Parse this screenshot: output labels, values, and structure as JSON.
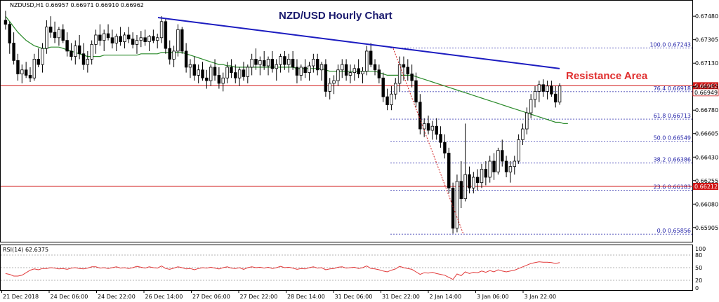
{
  "header": {
    "symbol_line": "NZDUSD,H1  0.66957 0.66971 0.66910 0.66962",
    "title": "NZD/USD Hourly Chart",
    "resistance_label": "Resistance Area",
    "rsi_label": "RSI(14) 62.6375"
  },
  "colors": {
    "bull_fill": "#ffffff",
    "bear_fill": "#000000",
    "candle_line": "#000000",
    "sma": "#2a8a2a",
    "trendline": "#1c1cc0",
    "horizontal": "#d01818",
    "fib": "#4a4ab8",
    "rsi": "#e23a3a",
    "annotation": "#e03030",
    "title": "#1a1a6e"
  },
  "chart_data": [
    {
      "type": "candlestick",
      "name": "price",
      "ylim": [
        0.6581,
        0.6758
      ],
      "y_ticks": [
        "0.67480",
        "0.67305",
        "0.67130",
        "0.66955",
        "0.66780",
        "0.66605",
        "0.66430",
        "0.66255",
        "0.66080",
        "0.65905"
      ],
      "x_ticks": [
        "21 Dec 2018",
        "24 Dec 06:00",
        "24 Dec 22:00",
        "26 Dec 14:00",
        "27 Dec 06:00",
        "27 Dec 22:00",
        "28 Dec 14:00",
        "31 Dec 06:00",
        "31 Dec 22:00",
        "2 Jan 14:00",
        "3 Jan 06:00",
        "3 Jan 22:00"
      ],
      "candles": [
        [
          0.6745,
          0.6752,
          0.6738,
          0.6742
        ],
        [
          0.6742,
          0.6744,
          0.672,
          0.6728
        ],
        [
          0.6728,
          0.6736,
          0.6712,
          0.6715
        ],
        [
          0.6715,
          0.672,
          0.67,
          0.6705
        ],
        [
          0.6705,
          0.6712,
          0.6698,
          0.6708
        ],
        [
          0.6708,
          0.6714,
          0.6702,
          0.6704
        ],
        [
          0.6704,
          0.671,
          0.6699,
          0.6702
        ],
        [
          0.6702,
          0.672,
          0.67,
          0.6716
        ],
        [
          0.6716,
          0.6724,
          0.671,
          0.6712
        ],
        [
          0.6712,
          0.6728,
          0.6706,
          0.6724
        ],
        [
          0.6724,
          0.6745,
          0.672,
          0.674
        ],
        [
          0.674,
          0.6748,
          0.6732,
          0.6736
        ],
        [
          0.6736,
          0.6744,
          0.6728,
          0.6732
        ],
        [
          0.6732,
          0.674,
          0.6726,
          0.6738
        ],
        [
          0.6738,
          0.6742,
          0.6728,
          0.673
        ],
        [
          0.673,
          0.6736,
          0.6718,
          0.6722
        ],
        [
          0.6722,
          0.6728,
          0.6715,
          0.6718
        ],
        [
          0.6718,
          0.673,
          0.6712,
          0.6726
        ],
        [
          0.6726,
          0.6734,
          0.6716,
          0.672
        ],
        [
          0.672,
          0.6728,
          0.6708,
          0.6712
        ],
        [
          0.6712,
          0.6722,
          0.6706,
          0.6716
        ],
        [
          0.6716,
          0.673,
          0.6712,
          0.6727
        ],
        [
          0.6727,
          0.6738,
          0.672,
          0.6734
        ],
        [
          0.6734,
          0.6742,
          0.6726,
          0.673
        ],
        [
          0.673,
          0.6738,
          0.6722,
          0.6735
        ],
        [
          0.6735,
          0.6742,
          0.673,
          0.6732
        ],
        [
          0.6732,
          0.6738,
          0.6724,
          0.6728
        ],
        [
          0.6728,
          0.6735,
          0.6722,
          0.6733
        ],
        [
          0.6733,
          0.674,
          0.6726,
          0.6729
        ],
        [
          0.6729,
          0.6736,
          0.6724,
          0.6734
        ],
        [
          0.6734,
          0.674,
          0.6728,
          0.6731
        ],
        [
          0.6731,
          0.6736,
          0.6724,
          0.6727
        ],
        [
          0.6727,
          0.6734,
          0.672,
          0.673
        ],
        [
          0.673,
          0.6737,
          0.6725,
          0.6732
        ],
        [
          0.6732,
          0.6738,
          0.6726,
          0.6729
        ],
        [
          0.6729,
          0.6734,
          0.6722,
          0.6733
        ],
        [
          0.6733,
          0.6738,
          0.6728,
          0.673
        ],
        [
          0.673,
          0.6735,
          0.6724,
          0.6732
        ],
        [
          0.6732,
          0.6748,
          0.6728,
          0.6744
        ],
        [
          0.6744,
          0.6746,
          0.672,
          0.6724
        ],
        [
          0.6724,
          0.673,
          0.6712,
          0.6716
        ],
        [
          0.6716,
          0.6726,
          0.671,
          0.6722
        ],
        [
          0.6722,
          0.6742,
          0.6718,
          0.6738
        ],
        [
          0.6738,
          0.674,
          0.672,
          0.6722
        ],
        [
          0.6722,
          0.6728,
          0.6706,
          0.671
        ],
        [
          0.671,
          0.6716,
          0.6702,
          0.6712
        ],
        [
          0.6712,
          0.6718,
          0.67,
          0.6704
        ],
        [
          0.6704,
          0.6712,
          0.6698,
          0.6708
        ],
        [
          0.6708,
          0.6714,
          0.67,
          0.6702
        ],
        [
          0.6702,
          0.6708,
          0.6694,
          0.67
        ],
        [
          0.67,
          0.6712,
          0.6696,
          0.671
        ],
        [
          0.671,
          0.6716,
          0.67,
          0.6704
        ],
        [
          0.6704,
          0.671,
          0.6694,
          0.6698
        ],
        [
          0.6698,
          0.6706,
          0.6692,
          0.6702
        ],
        [
          0.6702,
          0.6714,
          0.6698,
          0.671
        ],
        [
          0.671,
          0.6716,
          0.6702,
          0.6706
        ],
        [
          0.6706,
          0.6712,
          0.6698,
          0.6702
        ],
        [
          0.6702,
          0.671,
          0.6696,
          0.6708
        ],
        [
          0.6708,
          0.6714,
          0.67,
          0.6703
        ],
        [
          0.6703,
          0.6712,
          0.6698,
          0.671
        ],
        [
          0.671,
          0.672,
          0.6704,
          0.6716
        ],
        [
          0.6716,
          0.6724,
          0.6708,
          0.6712
        ],
        [
          0.6712,
          0.6718,
          0.6704,
          0.6715
        ],
        [
          0.6715,
          0.6722,
          0.6708,
          0.6711
        ],
        [
          0.6711,
          0.6718,
          0.6704,
          0.6716
        ],
        [
          0.6716,
          0.6722,
          0.6706,
          0.6709
        ],
        [
          0.6709,
          0.6716,
          0.67,
          0.6712
        ],
        [
          0.6712,
          0.672,
          0.6706,
          0.6718
        ],
        [
          0.6718,
          0.6722,
          0.6708,
          0.6712
        ],
        [
          0.6712,
          0.672,
          0.6706,
          0.6716
        ],
        [
          0.6716,
          0.6722,
          0.6708,
          0.671
        ],
        [
          0.671,
          0.6716,
          0.6698,
          0.6704
        ],
        [
          0.6704,
          0.6712,
          0.67,
          0.671
        ],
        [
          0.671,
          0.6716,
          0.6702,
          0.6706
        ],
        [
          0.6706,
          0.6714,
          0.67,
          0.6711
        ],
        [
          0.6711,
          0.672,
          0.6706,
          0.6716
        ],
        [
          0.6716,
          0.672,
          0.6704,
          0.6708
        ],
        [
          0.6708,
          0.6714,
          0.67,
          0.6712
        ],
        [
          0.6712,
          0.6716,
          0.6688,
          0.6692
        ],
        [
          0.6692,
          0.6702,
          0.6686,
          0.6698
        ],
        [
          0.6698,
          0.6704,
          0.669,
          0.67
        ],
        [
          0.67,
          0.6712,
          0.6696,
          0.6708
        ],
        [
          0.6708,
          0.6716,
          0.6702,
          0.6712
        ],
        [
          0.6712,
          0.6716,
          0.67,
          0.6704
        ],
        [
          0.6704,
          0.6712,
          0.6698,
          0.6706
        ],
        [
          0.6706,
          0.6712,
          0.67,
          0.6709
        ],
        [
          0.6709,
          0.6716,
          0.6702,
          0.6705
        ],
        [
          0.6705,
          0.671,
          0.6698,
          0.6707
        ],
        [
          0.6707,
          0.6726,
          0.6704,
          0.6722
        ],
        [
          0.6722,
          0.6728,
          0.671,
          0.6712
        ],
        [
          0.6712,
          0.6716,
          0.6704,
          0.6708
        ],
        [
          0.6708,
          0.6712,
          0.6698,
          0.6702
        ],
        [
          0.6702,
          0.6706,
          0.6684,
          0.6688
        ],
        [
          0.6688,
          0.6694,
          0.6678,
          0.6682
        ],
        [
          0.6682,
          0.6696,
          0.6678,
          0.669
        ],
        [
          0.669,
          0.6702,
          0.6686,
          0.6698
        ],
        [
          0.6698,
          0.6718,
          0.6692,
          0.6712
        ],
        [
          0.6712,
          0.6718,
          0.67,
          0.671
        ],
        [
          0.671,
          0.6716,
          0.67,
          0.6705
        ],
        [
          0.6705,
          0.6712,
          0.6695,
          0.67
        ],
        [
          0.67,
          0.6706,
          0.668,
          0.6684
        ],
        [
          0.6684,
          0.669,
          0.666,
          0.6664
        ],
        [
          0.6664,
          0.6672,
          0.6658,
          0.6668
        ],
        [
          0.6668,
          0.6674,
          0.666,
          0.6663
        ],
        [
          0.6663,
          0.667,
          0.6656,
          0.6666
        ],
        [
          0.6666,
          0.6672,
          0.6656,
          0.666
        ],
        [
          0.666,
          0.6666,
          0.665,
          0.6654
        ],
        [
          0.6654,
          0.666,
          0.6642,
          0.6646
        ],
        [
          0.6646,
          0.665,
          0.6616,
          0.662
        ],
        [
          0.662,
          0.6624,
          0.6586,
          0.659
        ],
        [
          0.659,
          0.663,
          0.6587,
          0.6625
        ],
        [
          0.6625,
          0.664,
          0.6605,
          0.6612
        ],
        [
          0.6612,
          0.6668,
          0.661,
          0.663
        ],
        [
          0.663,
          0.6636,
          0.6616,
          0.662
        ],
        [
          0.662,
          0.6632,
          0.6616,
          0.6628
        ],
        [
          0.6628,
          0.6634,
          0.6618,
          0.6624
        ],
        [
          0.6624,
          0.6638,
          0.662,
          0.6634
        ],
        [
          0.6634,
          0.664,
          0.6622,
          0.6628
        ],
        [
          0.6628,
          0.6644,
          0.6624,
          0.664
        ],
        [
          0.664,
          0.6646,
          0.6626,
          0.6632
        ],
        [
          0.6632,
          0.665,
          0.663,
          0.6648
        ],
        [
          0.6648,
          0.6656,
          0.6636,
          0.664
        ],
        [
          0.664,
          0.6644,
          0.6628,
          0.6632
        ],
        [
          0.6632,
          0.664,
          0.6624,
          0.6636
        ],
        [
          0.6636,
          0.6644,
          0.663,
          0.664
        ],
        [
          0.664,
          0.666,
          0.6638,
          0.6656
        ],
        [
          0.6656,
          0.6668,
          0.6652,
          0.6664
        ],
        [
          0.6664,
          0.668,
          0.666,
          0.6676
        ],
        [
          0.6676,
          0.669,
          0.6672,
          0.6686
        ],
        [
          0.6686,
          0.6696,
          0.668,
          0.6692
        ],
        [
          0.6692,
          0.67,
          0.6684,
          0.6697
        ],
        [
          0.6697,
          0.6701,
          0.6688,
          0.6692
        ],
        [
          0.6692,
          0.67,
          0.6686,
          0.6696
        ],
        [
          0.6696,
          0.67,
          0.6688,
          0.669
        ],
        [
          0.669,
          0.6696,
          0.668,
          0.6684
        ],
        [
          0.6684,
          0.6698,
          0.6682,
          0.6696
        ]
      ],
      "sma": [
        0.6748,
        0.6744,
        0.674,
        0.6736,
        0.6733,
        0.673,
        0.6728,
        0.6726,
        0.6725,
        0.6724,
        0.6724,
        0.6725,
        0.6725,
        0.6725,
        0.6724,
        0.6723,
        0.6722,
        0.6721,
        0.672,
        0.6719,
        0.6718,
        0.6718,
        0.6718,
        0.6718,
        0.6719,
        0.6719,
        0.6719,
        0.6719,
        0.6719,
        0.6719,
        0.6719,
        0.6719,
        0.6719,
        0.672,
        0.672,
        0.672,
        0.672,
        0.672,
        0.6721,
        0.6721,
        0.6721,
        0.6721,
        0.6721,
        0.6721,
        0.672,
        0.6719,
        0.6718,
        0.6717,
        0.6716,
        0.6715,
        0.6714,
        0.6713,
        0.6712,
        0.6712,
        0.6711,
        0.6711,
        0.671,
        0.671,
        0.671,
        0.671,
        0.671,
        0.671,
        0.671,
        0.671,
        0.671,
        0.671,
        0.671,
        0.671,
        0.671,
        0.671,
        0.671,
        0.6709,
        0.6709,
        0.6709,
        0.6709,
        0.6709,
        0.6709,
        0.6709,
        0.6708,
        0.6707,
        0.6707,
        0.6707,
        0.6707,
        0.6707,
        0.6707,
        0.6707,
        0.6707,
        0.6707,
        0.6707,
        0.6707,
        0.6707,
        0.6706,
        0.6705,
        0.6704,
        0.6704,
        0.6704,
        0.6704,
        0.6704,
        0.6704,
        0.6704,
        0.6703,
        0.6702,
        0.6701,
        0.67,
        0.6699,
        0.6698,
        0.6697,
        0.6696,
        0.6695,
        0.6694,
        0.6693,
        0.6692,
        0.6691,
        0.669,
        0.6689,
        0.6688,
        0.6687,
        0.6686,
        0.6685,
        0.6684,
        0.6683,
        0.6682,
        0.6681,
        0.668,
        0.6679,
        0.6678,
        0.6677,
        0.6676,
        0.6675,
        0.6674,
        0.6673,
        0.6672,
        0.6671,
        0.667,
        0.6669,
        0.6669,
        0.6668,
        0.6668
      ],
      "trendline": [
        [
          0.6747,
          225
        ],
        [
          0.6709,
          797
        ]
      ],
      "dotted_swing": [
        [
          0.6724,
          560
        ],
        [
          0.65856,
          660
        ]
      ],
      "horizontal_levels": [
        {
          "value": 0.66962,
          "label": "0.66962"
        },
        {
          "value": 0.66212,
          "label": "0.66212"
        }
      ],
      "fibonacci": [
        {
          "text": "100.0  0.67243",
          "value": 0.67243
        },
        {
          "text": "76.4  0.66918",
          "value": 0.66918
        },
        {
          "text": "61.8  0.66713",
          "value": 0.66713
        },
        {
          "text": "50.0  0.66549",
          "value": 0.66549
        },
        {
          "text": "38.2  0.66386",
          "value": 0.66386
        },
        {
          "text": "23.6  0.66183",
          "value": 0.66183
        },
        {
          "text": "0.0  0.65856",
          "value": 0.65856
        }
      ],
      "right_labels": [
        "0.66949"
      ]
    },
    {
      "type": "line",
      "name": "RSI(14)",
      "ylim": [
        0,
        100
      ],
      "y_ticks": [
        "100",
        "80",
        "50",
        "20",
        "0"
      ],
      "levels": [
        80,
        50,
        20
      ],
      "values": [
        36,
        34,
        30,
        30,
        32,
        38,
        44,
        47,
        45,
        48,
        48,
        50,
        49,
        47,
        48,
        46,
        49,
        50,
        48,
        47,
        49,
        52,
        52,
        49,
        50,
        48,
        50,
        52,
        49,
        50,
        48,
        50,
        53,
        51,
        49,
        52,
        50,
        49,
        54,
        48,
        46,
        49,
        52,
        50,
        47,
        48,
        45,
        48,
        50,
        49,
        51,
        49,
        47,
        50,
        52,
        49,
        48,
        50,
        46,
        50,
        52,
        50,
        51,
        49,
        51,
        48,
        50,
        53,
        50,
        51,
        49,
        46,
        48,
        47,
        50,
        52,
        49,
        50,
        45,
        47,
        48,
        51,
        52,
        49,
        50,
        51,
        48,
        50,
        54,
        48,
        47,
        45,
        42,
        40,
        44,
        47,
        53,
        50,
        48,
        46,
        40,
        34,
        38,
        37,
        39,
        36,
        34,
        32,
        27,
        22,
        35,
        31,
        40,
        36,
        39,
        38,
        42,
        39,
        43,
        40,
        45,
        42,
        40,
        42,
        44,
        48,
        52,
        56,
        60,
        62,
        64,
        63,
        63,
        62,
        60,
        62
      ]
    }
  ]
}
